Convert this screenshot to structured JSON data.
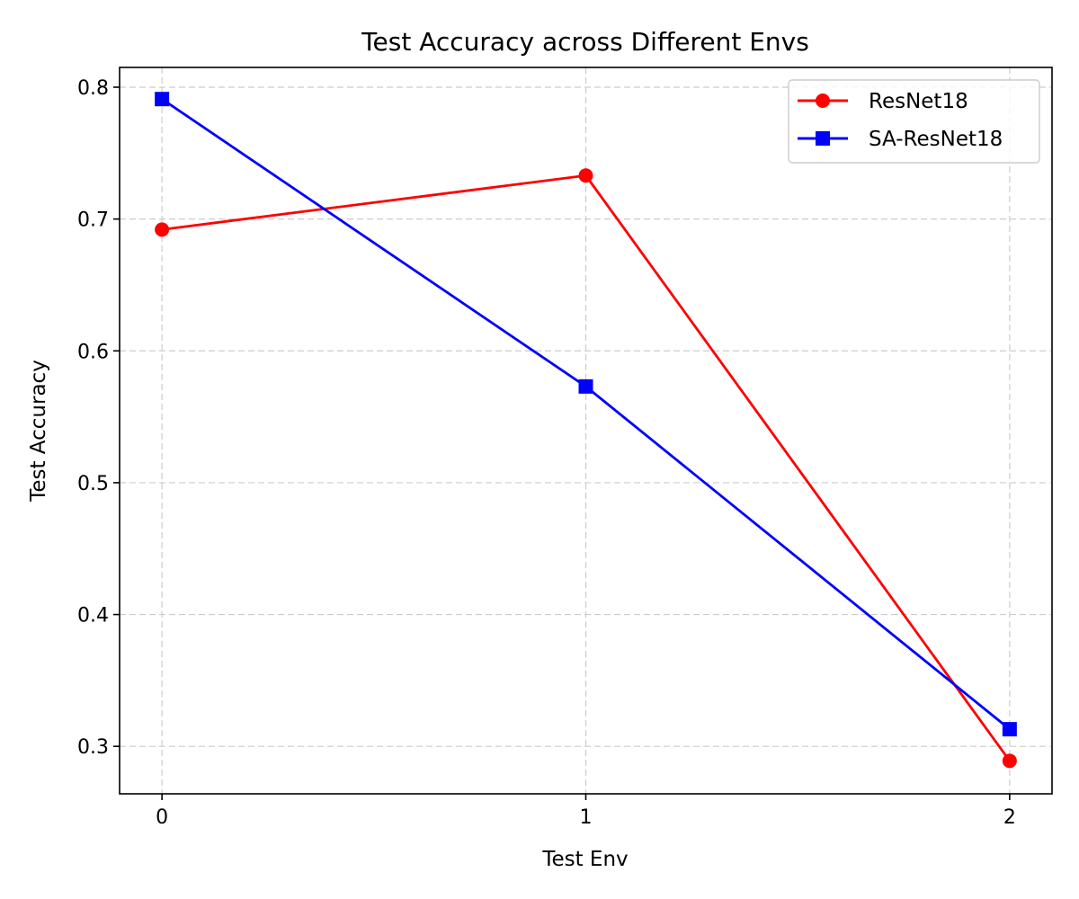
{
  "chart_data": {
    "type": "line",
    "title": "Test Accuracy across Different Envs",
    "xlabel": "Test Env",
    "ylabel": "Test Accuracy",
    "x": [
      0,
      1,
      2
    ],
    "x_ticks": [
      "0",
      "1",
      "2"
    ],
    "y_ticks": [
      "0.3",
      "0.4",
      "0.5",
      "0.6",
      "0.7",
      "0.8"
    ],
    "xlim": [
      -0.1,
      2.1
    ],
    "ylim": [
      0.264,
      0.815
    ],
    "grid": true,
    "legend_position": "top-right",
    "series": [
      {
        "name": "ResNet18",
        "values": [
          0.692,
          0.733,
          0.289
        ],
        "color": "#ff0000",
        "marker": "circle"
      },
      {
        "name": "SA-ResNet18",
        "values": [
          0.791,
          0.573,
          0.313
        ],
        "color": "#0000ff",
        "marker": "square"
      }
    ]
  }
}
